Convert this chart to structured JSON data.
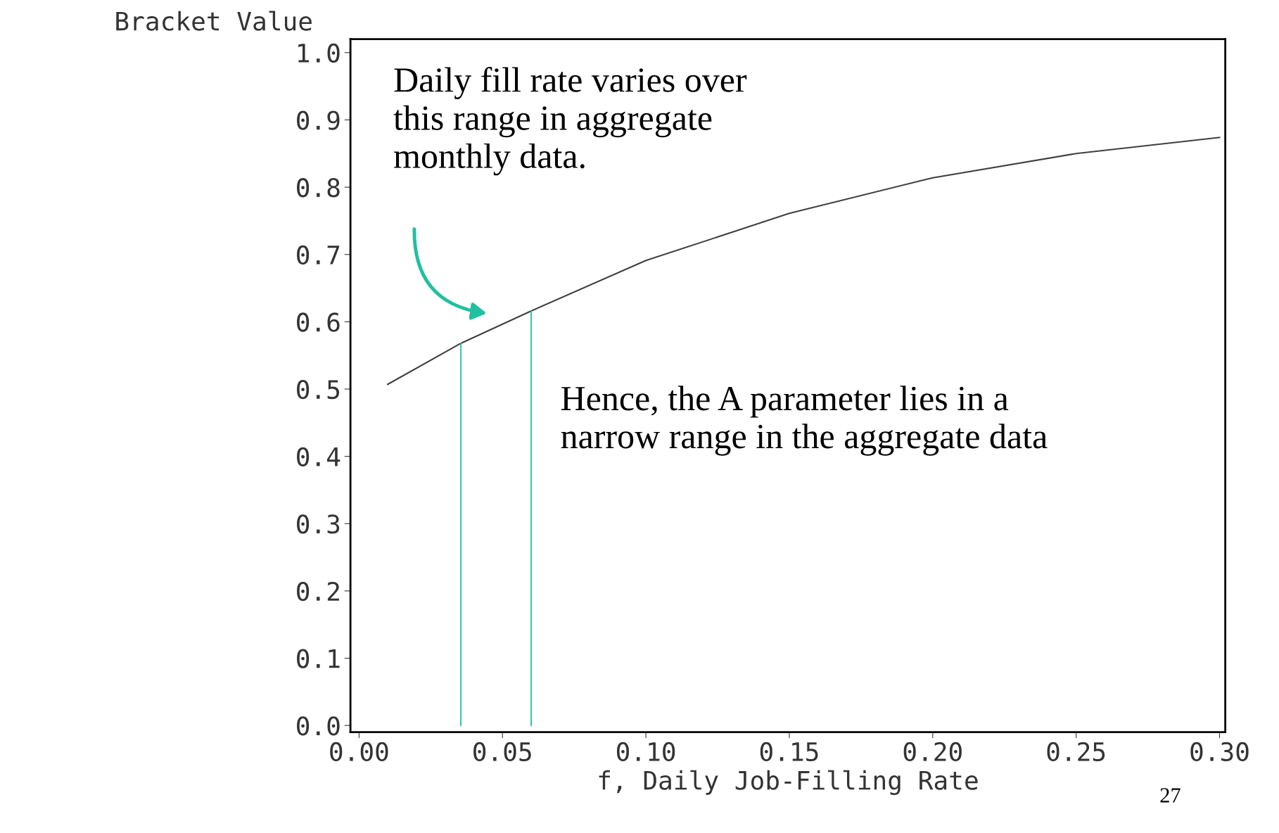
{
  "chart_data": {
    "type": "line",
    "xlabel": "f, Daily Job-Filling Rate",
    "ylabel": "Bracket Value",
    "x": [
      0.01,
      0.0355,
      0.06,
      0.1,
      0.15,
      0.2,
      0.25,
      0.3
    ],
    "series": [
      {
        "color": "#404040",
        "values": [
          0.507,
          0.568,
          0.616,
          0.691,
          0.761,
          0.814,
          0.85,
          0.874
        ]
      }
    ],
    "xlim": [
      -0.003,
      0.302
    ],
    "ylim": [
      -0.01,
      1.02
    ],
    "xticks": [
      {
        "value": 0,
        "label": "0.00"
      },
      {
        "value": 0.05,
        "label": "0.05"
      },
      {
        "value": 0.1,
        "label": "0.10"
      },
      {
        "value": 0.15,
        "label": "0.15"
      },
      {
        "value": 0.2,
        "label": "0.20"
      },
      {
        "value": 0.25,
        "label": "0.25"
      },
      {
        "value": 0.3,
        "label": "0.30"
      }
    ],
    "yticks": [
      {
        "value": 0,
        "label": "0.0"
      },
      0.1,
      0.2,
      0.3,
      0.4,
      0.5,
      0.6,
      0.7,
      0.8,
      0.9,
      {
        "value": 1,
        "label": "1.0"
      }
    ],
    "ref_lines": [
      {
        "axis": "x",
        "value": 0.0355,
        "color": "#20c0a0"
      },
      {
        "axis": "x",
        "value": 0.06,
        "color": "#20c0a0"
      }
    ],
    "annotations": [
      "Daily fill rate varies over\nthis range in aggregate\nmonthly data.",
      "Hence, the A parameter lies in a\nnarrow range in the aggregate data",
      "27"
    ],
    "grid": false,
    "legend": false,
    "marker": "none",
    "line_style": "solid"
  }
}
